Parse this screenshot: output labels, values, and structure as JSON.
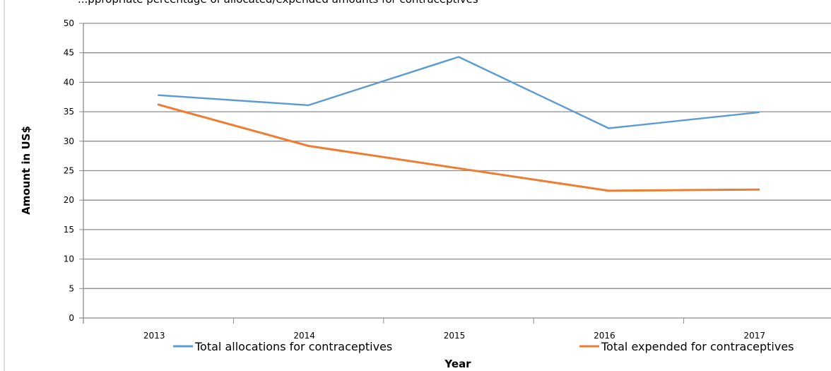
{
  "page": {
    "header_fragment": "...ppropriate percentage of allocated/expended amounts for contraceptives"
  },
  "chart_data": {
    "type": "line",
    "title": "",
    "xlabel": "Year",
    "ylabel": "Amount in US$",
    "categories": [
      "2013",
      "2014",
      "2015",
      "2016",
      "2017"
    ],
    "ylim": [
      0,
      50
    ],
    "yticks": [
      0,
      5,
      10,
      15,
      20,
      25,
      30,
      35,
      40,
      45,
      50
    ],
    "grid": true,
    "legend_position": "bottom",
    "series": [
      {
        "name": "Total allocations for contraceptives",
        "color": "#5b9bd5",
        "values": [
          37.8,
          36.1,
          44.3,
          32.2,
          34.9
        ]
      },
      {
        "name": "Total expended for contraceptives",
        "color": "#ed7d31",
        "values": [
          36.2,
          29.2,
          25.4,
          21.6,
          21.8
        ]
      }
    ]
  }
}
